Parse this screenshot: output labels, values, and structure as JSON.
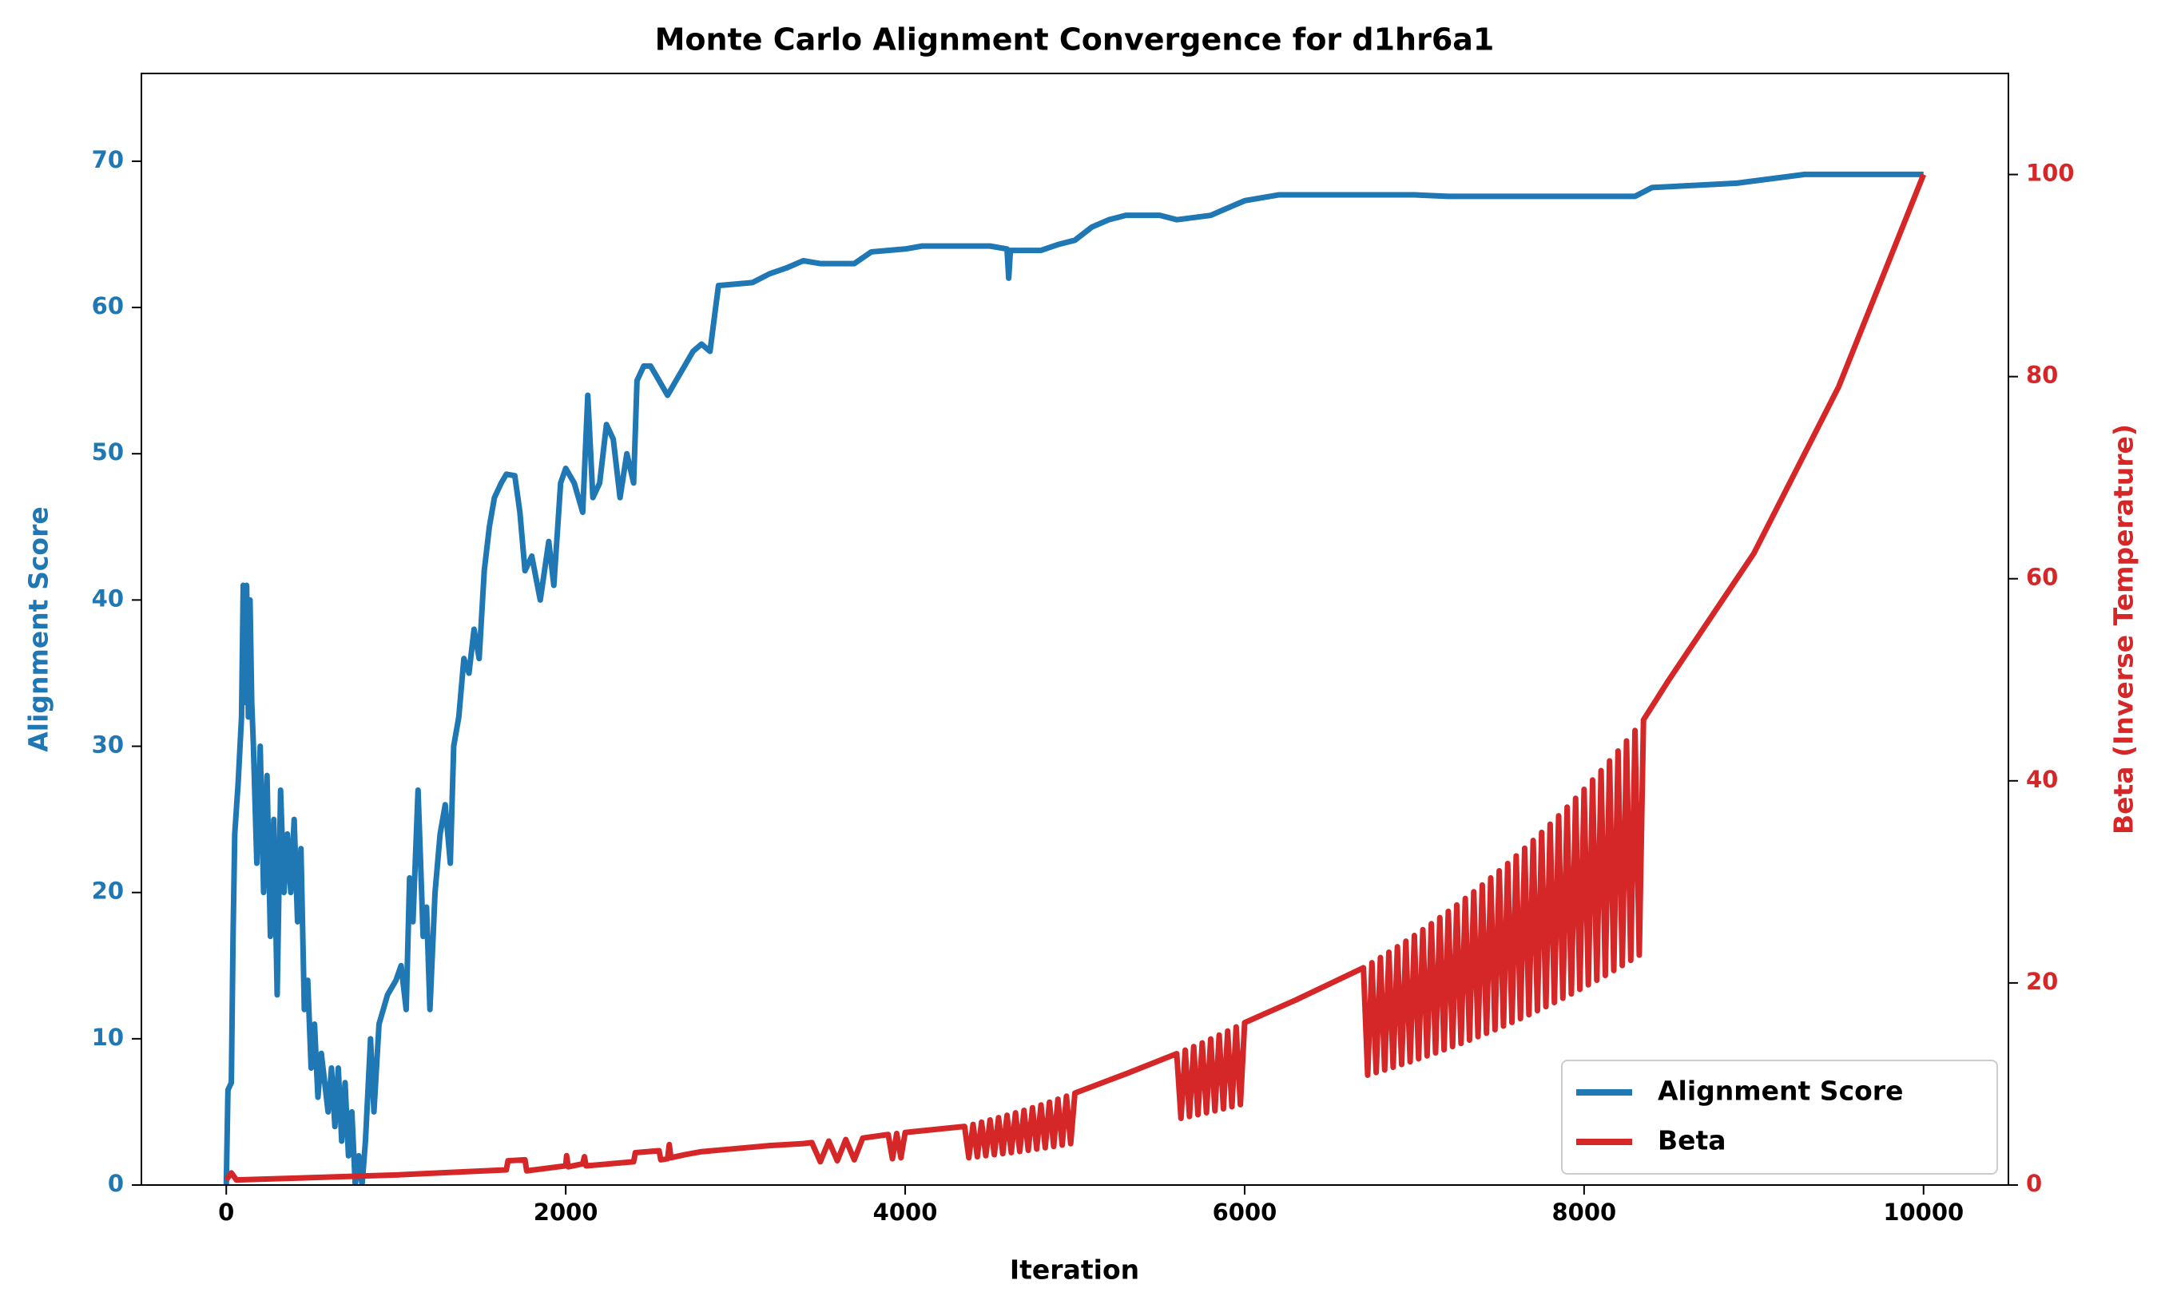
{
  "chart_data": {
    "type": "line",
    "title": "Monte Carlo Alignment Convergence for d1hr6a1",
    "x_label": "Iteration",
    "y_label": "Alignment Score",
    "y2_label": "Beta (Inverse Temperature)",
    "xlim": [
      -500,
      10500
    ],
    "xticks": [
      0,
      2000,
      4000,
      6000,
      8000,
      10000
    ],
    "ylim": [
      0,
      76
    ],
    "yticks": [
      0,
      10,
      20,
      30,
      40,
      50,
      60,
      70
    ],
    "y2lim": [
      0,
      110
    ],
    "y2ticks": [
      0,
      20,
      40,
      60,
      80,
      100
    ],
    "grid": false,
    "legend": "lower right",
    "series": [
      {
        "name": "Alignment Score",
        "color": "#1f77b4",
        "axis": "y",
        "x": [
          0,
          10,
          30,
          40,
          50,
          70,
          90,
          100,
          110,
          120,
          130,
          140,
          150,
          160,
          180,
          200,
          220,
          240,
          260,
          280,
          300,
          320,
          340,
          360,
          380,
          400,
          420,
          440,
          460,
          480,
          500,
          520,
          540,
          560,
          600,
          620,
          640,
          660,
          680,
          700,
          720,
          740,
          760,
          780,
          800,
          820,
          850,
          870,
          900,
          950,
          1000,
          1030,
          1060,
          1080,
          1100,
          1130,
          1160,
          1180,
          1200,
          1230,
          1260,
          1290,
          1320,
          1340,
          1370,
          1400,
          1430,
          1460,
          1490,
          1520,
          1550,
          1580,
          1620,
          1650,
          1700,
          1730,
          1760,
          1800,
          1850,
          1900,
          1930,
          1970,
          2000,
          2050,
          2100,
          2130,
          2160,
          2200,
          2240,
          2280,
          2320,
          2360,
          2400,
          2420,
          2460,
          2500,
          2550,
          2600,
          2650,
          2700,
          2750,
          2800,
          2850,
          2900,
          3100,
          3200,
          3300,
          3400,
          3500,
          3700,
          3800,
          4000,
          4100,
          4300,
          4500,
          4600,
          4610,
          4620,
          4800,
          4900,
          5000,
          5100,
          5200,
          5300,
          5500,
          5600,
          5800,
          6000,
          6200,
          7000,
          7200,
          8000,
          8300,
          8400,
          8900,
          9100,
          9300,
          9600,
          10000
        ],
        "values": [
          0,
          6.5,
          7,
          17,
          24,
          27.5,
          32,
          41,
          33,
          41,
          32,
          40,
          33,
          30,
          22,
          30,
          20,
          28,
          17,
          25,
          13,
          27,
          20,
          24,
          20,
          25,
          18,
          23,
          12,
          14,
          8,
          11,
          6,
          9,
          5,
          8,
          4,
          8,
          3,
          7,
          2,
          5,
          0,
          2,
          0,
          3,
          10,
          5,
          11,
          13,
          14,
          15,
          12,
          21,
          18,
          27,
          17,
          19,
          12,
          20,
          24,
          26,
          22,
          30,
          32,
          36,
          35,
          38,
          36,
          42,
          45,
          47,
          48,
          48.6,
          48.5,
          46,
          42,
          43,
          40,
          44,
          41,
          48,
          49,
          48,
          46,
          54,
          47,
          48,
          52,
          51,
          47,
          50,
          48,
          55,
          56,
          56,
          55,
          54,
          55,
          56,
          57,
          57.5,
          57,
          61.5,
          61.7,
          62.3,
          62.7,
          63.2,
          63,
          63,
          63.8,
          64,
          64.2,
          64.2,
          64.2,
          64,
          62,
          63.9,
          63.9,
          64.3,
          64.6,
          65.5,
          66,
          66.3,
          66.3,
          66,
          66.3,
          67.3,
          67.7,
          67.7,
          67.6,
          67.6,
          67.6,
          68.2,
          68.5,
          68.8,
          69.1,
          69.1,
          69.1
        ]
      },
      {
        "name": "Beta",
        "color": "#d62728",
        "axis": "y2",
        "x": [
          0,
          30,
          60,
          1000,
          1650,
          1660,
          1760,
          1770,
          2000,
          2005,
          2015,
          2100,
          2110,
          2120,
          2400,
          2410,
          2550,
          2560,
          2600,
          2610,
          2620,
          2700,
          2800,
          3000,
          3200,
          3400,
          3450,
          3500,
          3550,
          3600,
          3650,
          3700,
          3750,
          3900,
          3925,
          3950,
          3975,
          4000,
          4350,
          4375,
          4400,
          4425,
          4450,
          4475,
          4500,
          4525,
          4550,
          4575,
          4600,
          4625,
          4650,
          4675,
          4700,
          4725,
          4750,
          4775,
          4800,
          4825,
          4850,
          4875,
          4900,
          4925,
          4950,
          4975,
          5000,
          5300,
          5600,
          5625,
          5650,
          5675,
          5700,
          5725,
          5750,
          5775,
          5800,
          5825,
          5850,
          5875,
          5900,
          5925,
          5950,
          5975,
          6000,
          6300,
          6700,
          6725,
          6750,
          6775,
          6800,
          6825,
          6850,
          6875,
          6900,
          6925,
          6950,
          6975,
          7000,
          7025,
          7050,
          7075,
          7100,
          7125,
          7150,
          7175,
          7200,
          7225,
          7250,
          7275,
          7300,
          7325,
          7350,
          7375,
          7400,
          7425,
          7450,
          7475,
          7500,
          7525,
          7550,
          7575,
          7600,
          7625,
          7650,
          7675,
          7700,
          7725,
          7750,
          7775,
          7800,
          7825,
          7850,
          7875,
          7900,
          7925,
          7950,
          7975,
          8000,
          8025,
          8050,
          8075,
          8100,
          8125,
          8150,
          8175,
          8200,
          8225,
          8250,
          8275,
          8300,
          8325,
          8350,
          8500,
          9000,
          9500,
          10000
        ],
        "values": [
          0.5,
          1.2,
          0.5,
          1.0,
          1.5,
          2.4,
          2.5,
          1.4,
          1.9,
          2.9,
          1.8,
          2.1,
          2.8,
          1.9,
          2.3,
          3.2,
          3.4,
          2.5,
          2.6,
          4.0,
          2.7,
          3.0,
          3.3,
          3.6,
          3.9,
          4.1,
          4.2,
          2.3,
          4.35,
          2.4,
          4.5,
          2.5,
          4.65,
          5.0,
          2.6,
          5.1,
          2.7,
          5.2,
          5.8,
          2.7,
          6.0,
          2.8,
          6.22,
          2.9,
          6.44,
          3.0,
          6.67,
          3.1,
          6.9,
          3.21,
          7.14,
          3.32,
          7.39,
          3.44,
          7.65,
          3.56,
          7.92,
          3.69,
          8.2,
          3.82,
          8.49,
          3.95,
          8.79,
          4.09,
          9.1,
          11.0,
          13.0,
          6.6,
          13.35,
          6.78,
          13.7,
          6.96,
          14.07,
          7.15,
          14.45,
          7.34,
          14.84,
          7.54,
          15.24,
          7.74,
          15.65,
          7.95,
          16.07,
          18.3,
          21.5,
          10.87,
          22.0,
          11.13,
          22.51,
          11.39,
          23.04,
          11.65,
          23.58,
          11.93,
          24.13,
          12.2,
          24.69,
          12.49,
          25.27,
          12.78,
          25.86,
          13.08,
          26.46,
          13.38,
          27.08,
          13.7,
          27.71,
          14.01,
          28.36,
          14.34,
          29.02,
          14.68,
          29.69,
          15.02,
          30.39,
          15.37,
          31.1,
          15.73,
          31.82,
          16.09,
          32.57,
          16.47,
          33.33,
          16.85,
          34.1,
          17.25,
          34.9,
          17.65,
          35.71,
          18.06,
          36.54,
          18.48,
          37.4,
          18.91,
          38.27,
          19.36,
          39.16,
          19.81,
          40.08,
          20.27,
          41.01,
          20.74,
          41.97,
          21.23,
          42.95,
          21.72,
          43.95,
          22.23,
          44.98,
          22.75,
          46.03,
          50,
          62.5,
          79,
          100
        ]
      }
    ]
  }
}
